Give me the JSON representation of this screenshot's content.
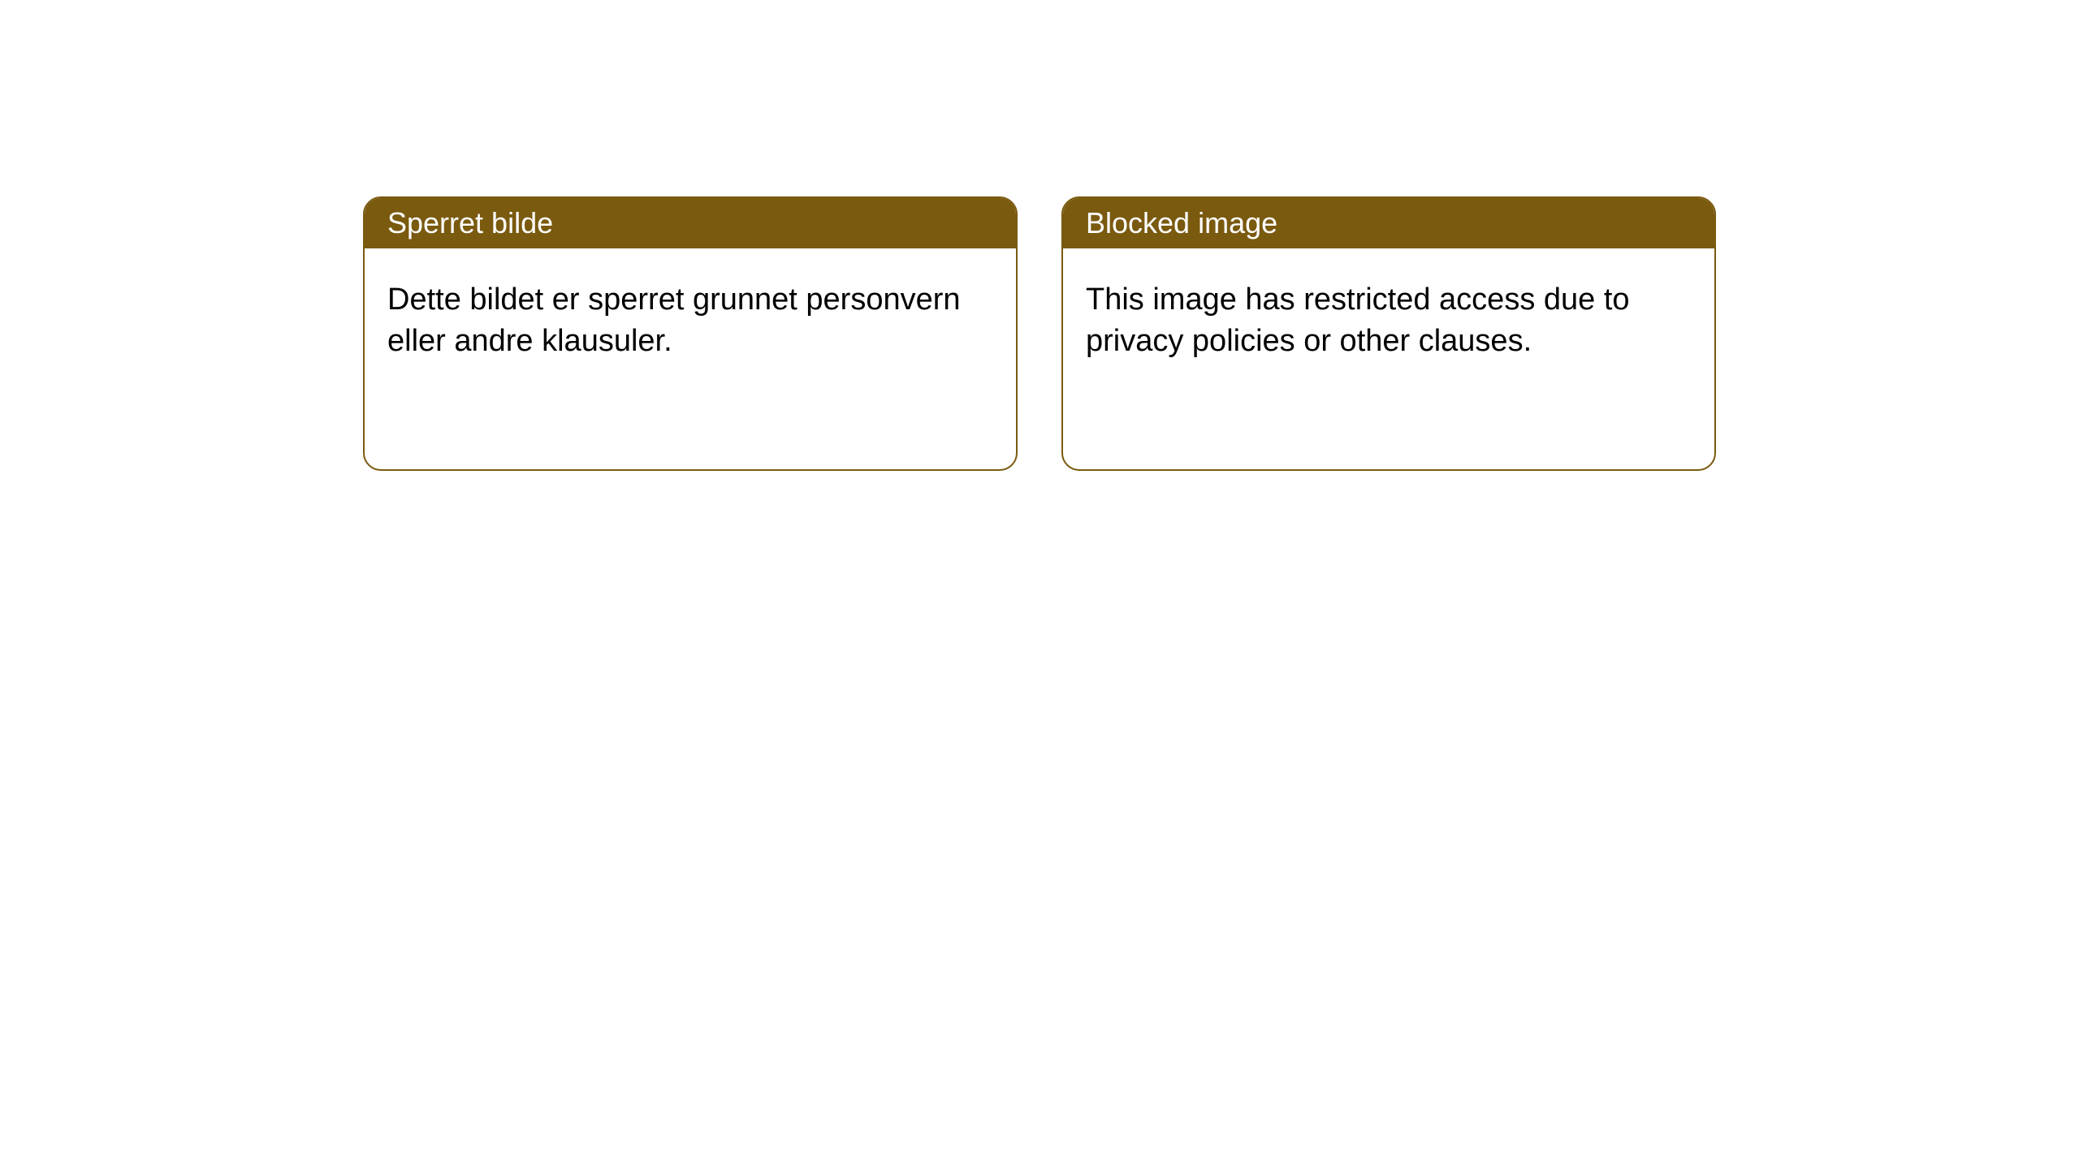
{
  "colors": {
    "header_bg": "#7a5a0f",
    "header_fg": "#ffffff",
    "border": "#7a5a0f",
    "body_fg": "#000000",
    "page_bg": "#ffffff"
  },
  "cards": [
    {
      "title": "Sperret bilde",
      "body": "Dette bildet er sperret grunnet personvern eller andre klausuler."
    },
    {
      "title": "Blocked image",
      "body": "This image has restricted access due to privacy policies or other clauses."
    }
  ]
}
